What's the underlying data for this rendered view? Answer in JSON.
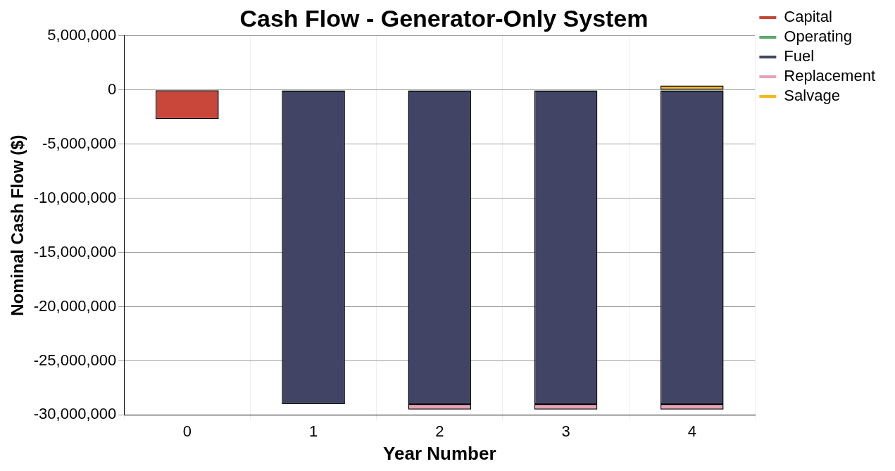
{
  "chart_data": {
    "type": "bar",
    "title": "Cash Flow - Generator-Only System",
    "xlabel": "Year Number",
    "ylabel": "Nominal Cash Flow ($)",
    "categories": [
      "0",
      "1",
      "2",
      "3",
      "4"
    ],
    "stacked": true,
    "series": [
      {
        "name": "Capital",
        "color": "#c8473a",
        "values": [
          -2700000,
          null,
          null,
          null,
          null
        ]
      },
      {
        "name": "Operating",
        "color": "#5aaa6a",
        "values": [
          null,
          -50000,
          -50000,
          -50000,
          -50000
        ]
      },
      {
        "name": "Fuel",
        "color": "#414465",
        "values": [
          null,
          -28950000,
          -28950000,
          -28950000,
          -28950000
        ]
      },
      {
        "name": "Replacement",
        "color": "#e8a0b4",
        "values": [
          null,
          null,
          -500000,
          -500000,
          -500000
        ]
      },
      {
        "name": "Salvage",
        "color": "#f5b820",
        "values": [
          null,
          null,
          null,
          null,
          400000
        ]
      }
    ],
    "ylim": [
      -30000000,
      5000000
    ],
    "yticks": [
      {
        "value": -30000000,
        "label": "-30,000,000"
      },
      {
        "value": -25000000,
        "label": "-25,000,000"
      },
      {
        "value": -20000000,
        "label": "-20,000,000"
      },
      {
        "value": -15000000,
        "label": "-15,000,000"
      },
      {
        "value": -10000000,
        "label": "-10,000,000"
      },
      {
        "value": -5000000,
        "label": "-5,000,000"
      },
      0,
      {
        "value": 5000000,
        "label": "5,000,000"
      }
    ],
    "grid": true,
    "legend": "right"
  }
}
